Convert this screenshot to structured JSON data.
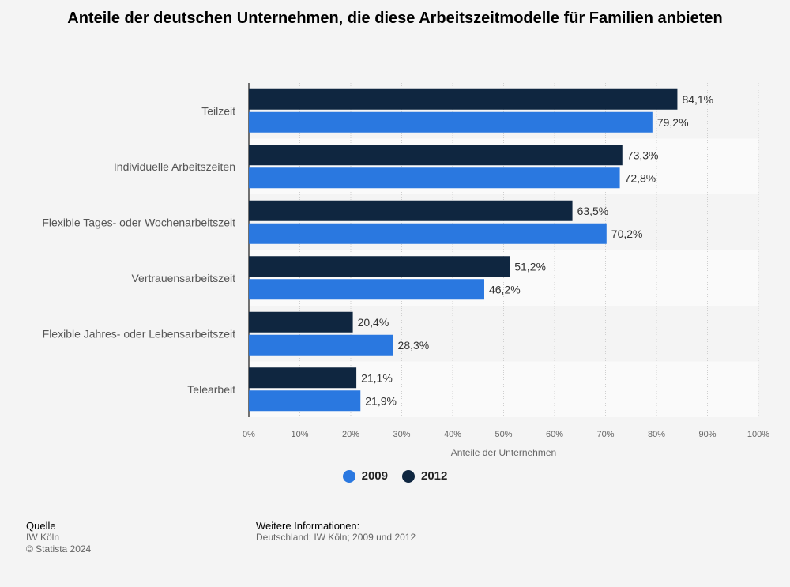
{
  "title": "Anteile der deutschen Unternehmen, die diese Arbeitszeitmodelle für Familien anbieten",
  "chart_data": {
    "type": "bar",
    "orientation": "horizontal",
    "categories": [
      "Teilzeit",
      "Individuelle Arbeitszeiten",
      "Flexible Tages- oder Wochenarbeitszeit",
      "Vertrauensarbeitszeit",
      "Flexible Jahres- oder Lebensarbeitszeit",
      "Telearbeit"
    ],
    "series": [
      {
        "name": "2012",
        "color": "#0f2640",
        "values": [
          84.1,
          73.3,
          63.5,
          51.2,
          20.4,
          21.1
        ],
        "labels": [
          "84,1%",
          "73,3%",
          "63,5%",
          "51,2%",
          "20,4%",
          "21,1%"
        ]
      },
      {
        "name": "2009",
        "color": "#2a78e0",
        "values": [
          79.2,
          72.8,
          70.2,
          46.2,
          28.3,
          21.9
        ],
        "labels": [
          "79,2%",
          "72,8%",
          "70,2%",
          "46,2%",
          "28,3%",
          "21,9%"
        ]
      }
    ],
    "xlim": [
      0,
      100
    ],
    "xticks": [
      0,
      10,
      20,
      30,
      40,
      50,
      60,
      70,
      80,
      90,
      100
    ],
    "xtick_labels": [
      "0%",
      "10%",
      "20%",
      "30%",
      "40%",
      "50%",
      "60%",
      "70%",
      "80%",
      "90%",
      "100%"
    ],
    "xlabel": "Anteile der Unternehmen",
    "grid": true,
    "legend_position": "bottom"
  },
  "legend": [
    {
      "name": "2009",
      "color": "#2a78e0"
    },
    {
      "name": "2012",
      "color": "#0f2640"
    }
  ],
  "source": {
    "heading": "Quelle",
    "line1": "IW Köln",
    "line2": "© Statista 2024"
  },
  "info": {
    "heading": "Weitere Informationen:",
    "text": "Deutschland; IW Köln; 2009 und 2012"
  }
}
